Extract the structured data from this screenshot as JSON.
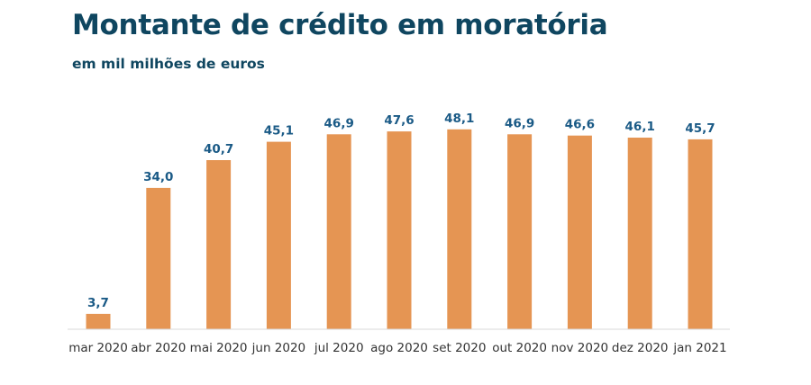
{
  "chart_data": {
    "type": "bar",
    "title": "Montante de crédito em moratória",
    "subtitle": "em mil milhões de euros",
    "xlabel": "",
    "ylabel": "",
    "ylim": [
      0,
      50
    ],
    "grid": false,
    "categories": [
      "mar 2020",
      "abr 2020",
      "mai 2020",
      "jun 2020",
      "jul 2020",
      "ago 2020",
      "set 2020",
      "out 2020",
      "nov 2020",
      "dez 2020",
      "jan 2021"
    ],
    "values": [
      3.7,
      34.0,
      40.7,
      45.1,
      46.9,
      47.6,
      48.1,
      46.9,
      46.6,
      46.1,
      45.7
    ],
    "value_labels": [
      "3,7",
      "34,0",
      "40,7",
      "45,1",
      "46,9",
      "47,6",
      "48,1",
      "46,9",
      "46,6",
      "46,1",
      "45,7"
    ],
    "bar_color": "#e59553",
    "label_color": "#1a5a86",
    "title_color": "#0f4660"
  }
}
